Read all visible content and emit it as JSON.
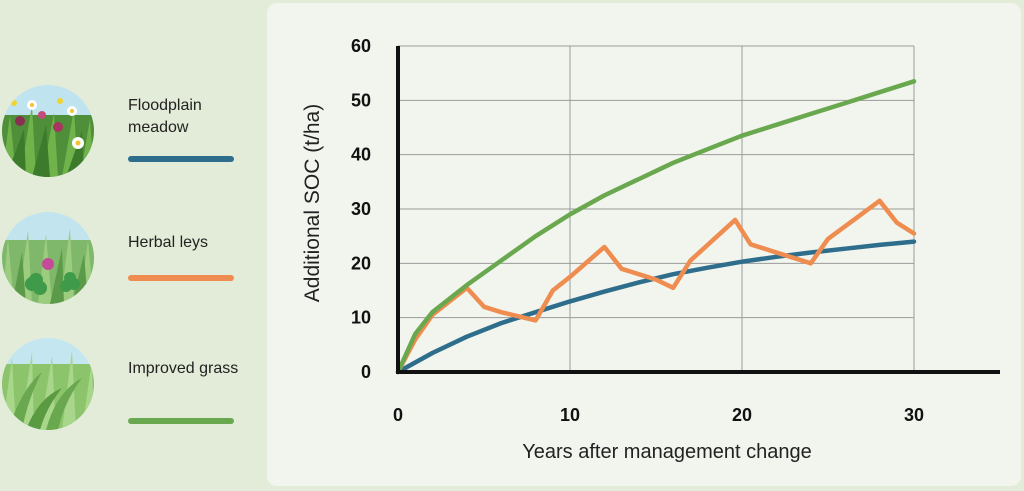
{
  "legend": {
    "items": [
      {
        "label_line1": "Floodplain",
        "label_line2": "meadow",
        "color": "#2e6e8c",
        "icon": "floodplain-meadow-icon"
      },
      {
        "label_line1": "Herbal leys",
        "label_line2": "",
        "color": "#ef8c4f",
        "icon": "herbal-leys-icon"
      },
      {
        "label_line1": "Improved grass",
        "label_line2": "",
        "color": "#6aa84f",
        "icon": "improved-grass-icon"
      }
    ]
  },
  "chart_data": {
    "type": "line",
    "xlabel": "Years after management change",
    "ylabel": "Additional SOC (t/ha)",
    "xlim": [
      0,
      35
    ],
    "ylim": [
      0,
      60
    ],
    "x_ticks": [
      "0",
      "10",
      "20",
      "30"
    ],
    "y_ticks": [
      "0",
      "10",
      "20",
      "30",
      "40",
      "50",
      "60"
    ],
    "grid": true,
    "series": [
      {
        "name": "Floodplain meadow",
        "color": "#2e6e8c",
        "x": [
          0,
          2,
          4,
          6,
          8,
          10,
          12,
          14,
          16,
          18,
          20,
          22,
          24,
          26,
          28,
          30
        ],
        "y": [
          0,
          3.5,
          6.5,
          9,
          11,
          13,
          14.8,
          16.5,
          18,
          19.2,
          20.3,
          21.2,
          22,
          22.7,
          23.4,
          24
        ]
      },
      {
        "name": "Herbal leys",
        "color": "#ef8c4f",
        "x": [
          0,
          1,
          2,
          3,
          4,
          5,
          6,
          8,
          9,
          10,
          12,
          13,
          15,
          16,
          17,
          19.6,
          20.5,
          22,
          24,
          25,
          28,
          29,
          30
        ],
        "y": [
          0,
          6,
          10.5,
          13,
          15.5,
          12,
          11,
          9.5,
          15,
          17.5,
          23,
          19,
          17,
          15.5,
          20.5,
          28,
          23.5,
          22,
          20,
          24.5,
          31.5,
          27.5,
          25.5
        ]
      },
      {
        "name": "Improved grass",
        "color": "#6aa84f",
        "x": [
          0,
          1,
          2,
          4,
          6,
          8,
          10,
          12,
          14,
          16,
          18,
          20,
          22,
          24,
          26,
          28,
          30
        ],
        "y": [
          0,
          7,
          11,
          16,
          20.5,
          25,
          29,
          32.5,
          35.5,
          38.5,
          41,
          43.5,
          45.5,
          47.5,
          49.5,
          51.5,
          53.5
        ]
      }
    ]
  }
}
